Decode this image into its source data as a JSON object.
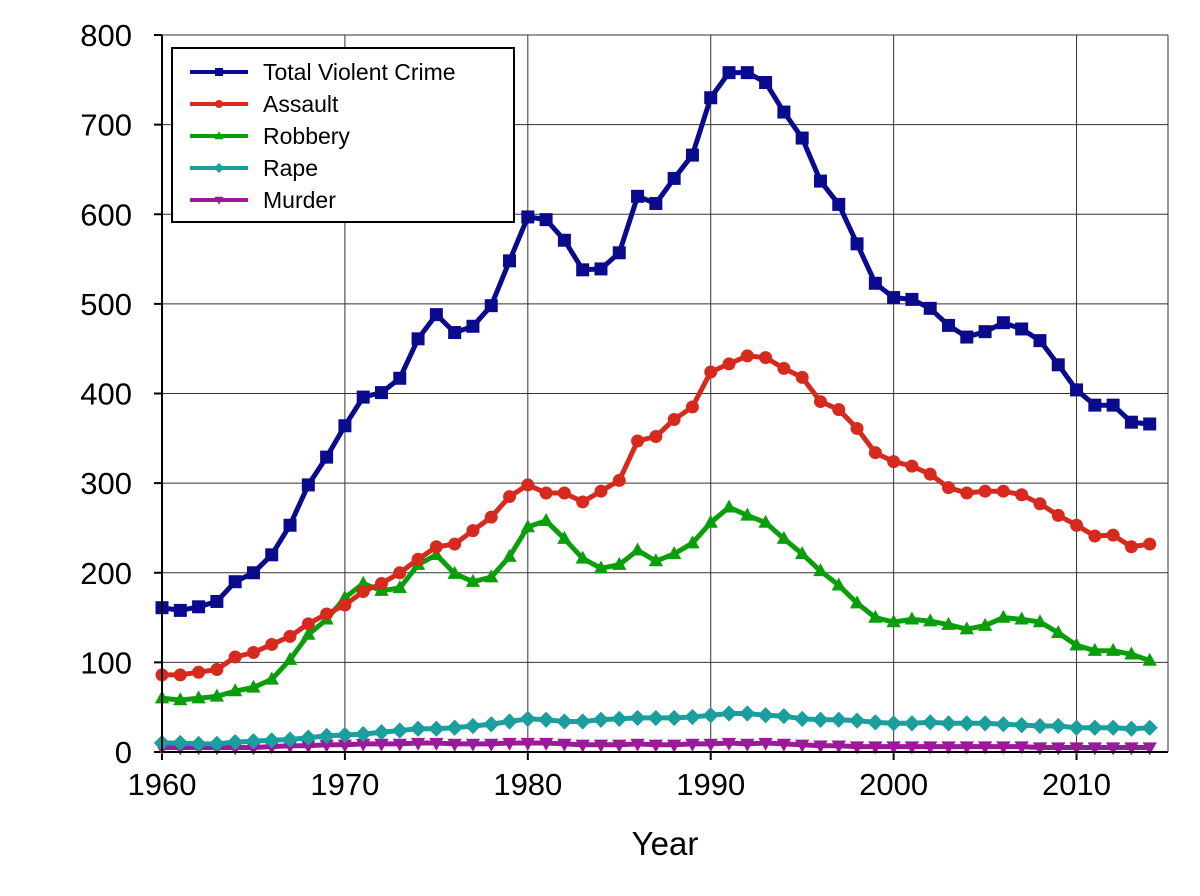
{
  "chart_data": {
    "type": "line",
    "title": "",
    "xlabel": "Year",
    "ylabel": "",
    "xlim": [
      1960,
      2015
    ],
    "ylim": [
      0,
      800
    ],
    "xticks": [
      1960,
      1970,
      1980,
      1990,
      2000,
      2010
    ],
    "yticks": [
      0,
      100,
      200,
      300,
      400,
      500,
      600,
      700,
      800
    ],
    "grid": true,
    "legend_position": "top-left",
    "x": [
      1960,
      1961,
      1962,
      1963,
      1964,
      1965,
      1966,
      1967,
      1968,
      1969,
      1970,
      1971,
      1972,
      1973,
      1974,
      1975,
      1976,
      1977,
      1978,
      1979,
      1980,
      1981,
      1982,
      1983,
      1984,
      1985,
      1986,
      1987,
      1988,
      1989,
      1990,
      1991,
      1992,
      1993,
      1994,
      1995,
      1996,
      1997,
      1998,
      1999,
      2000,
      2001,
      2002,
      2003,
      2004,
      2005,
      2006,
      2007,
      2008,
      2009,
      2010,
      2011,
      2012,
      2013,
      2014
    ],
    "series": [
      {
        "name": "Total Violent Crime",
        "color": "#0a0a8c",
        "marker": "square",
        "values": [
          161,
          158,
          162,
          168,
          190,
          200,
          220,
          253,
          298,
          329,
          364,
          396,
          401,
          417,
          461,
          488,
          468,
          475,
          498,
          548,
          597,
          594,
          571,
          538,
          539,
          557,
          620,
          612,
          640,
          666,
          730,
          758,
          758,
          747,
          714,
          685,
          637,
          611,
          567,
          523,
          507,
          505,
          495,
          476,
          463,
          469,
          479,
          472,
          459,
          432,
          404,
          387,
          387,
          368,
          366
        ]
      },
      {
        "name": "Assault",
        "color": "#d62a1e",
        "marker": "circle",
        "values": [
          86,
          86,
          89,
          92,
          106,
          111,
          120,
          129,
          143,
          154,
          164,
          179,
          188,
          200,
          215,
          229,
          232,
          247,
          262,
          285,
          298,
          289,
          289,
          279,
          291,
          303,
          347,
          352,
          371,
          385,
          424,
          433,
          442,
          440,
          428,
          418,
          391,
          382,
          361,
          334,
          324,
          319,
          310,
          295,
          289,
          291,
          291,
          287,
          277,
          264,
          253,
          241,
          242,
          229,
          232
        ]
      },
      {
        "name": "Robbery",
        "color": "#0a9e0a",
        "marker": "triangle",
        "values": [
          60,
          58,
          60,
          62,
          68,
          72,
          81,
          103,
          131,
          148,
          172,
          188,
          180,
          183,
          209,
          220,
          199,
          190,
          195,
          218,
          251,
          258,
          238,
          216,
          205,
          209,
          225,
          213,
          221,
          233,
          256,
          273,
          264,
          256,
          238,
          221,
          202,
          186,
          166,
          150,
          145,
          148,
          146,
          142,
          137,
          141,
          150,
          148,
          145,
          133,
          119,
          113,
          113,
          109,
          102
        ]
      },
      {
        "name": "Rape",
        "color": "#1a9e9e",
        "marker": "diamond",
        "values": [
          10,
          10,
          9,
          9,
          11,
          12,
          13,
          14,
          16,
          18,
          19,
          20,
          22,
          24,
          26,
          26,
          27,
          29,
          31,
          34,
          37,
          36,
          34,
          34,
          36,
          37,
          38,
          38,
          38,
          39,
          41,
          43,
          43,
          41,
          40,
          37,
          36,
          36,
          35,
          33,
          32,
          32,
          33,
          32,
          32,
          32,
          31,
          30,
          29,
          29,
          27,
          27,
          27,
          26,
          27
        ]
      },
      {
        "name": "Murder",
        "color": "#9a1a9a",
        "marker": "triangle-down",
        "values": [
          5,
          5,
          5,
          5,
          5,
          5,
          6,
          7,
          7,
          8,
          8,
          9,
          9,
          9,
          10,
          10,
          9,
          9,
          9,
          10,
          10,
          10,
          9,
          8,
          8,
          8,
          9,
          8,
          8,
          9,
          9,
          10,
          9,
          10,
          9,
          8,
          7,
          7,
          6,
          6,
          6,
          6,
          6,
          6,
          6,
          6,
          6,
          6,
          5,
          5,
          5,
          5,
          5,
          5,
          5
        ]
      }
    ]
  }
}
